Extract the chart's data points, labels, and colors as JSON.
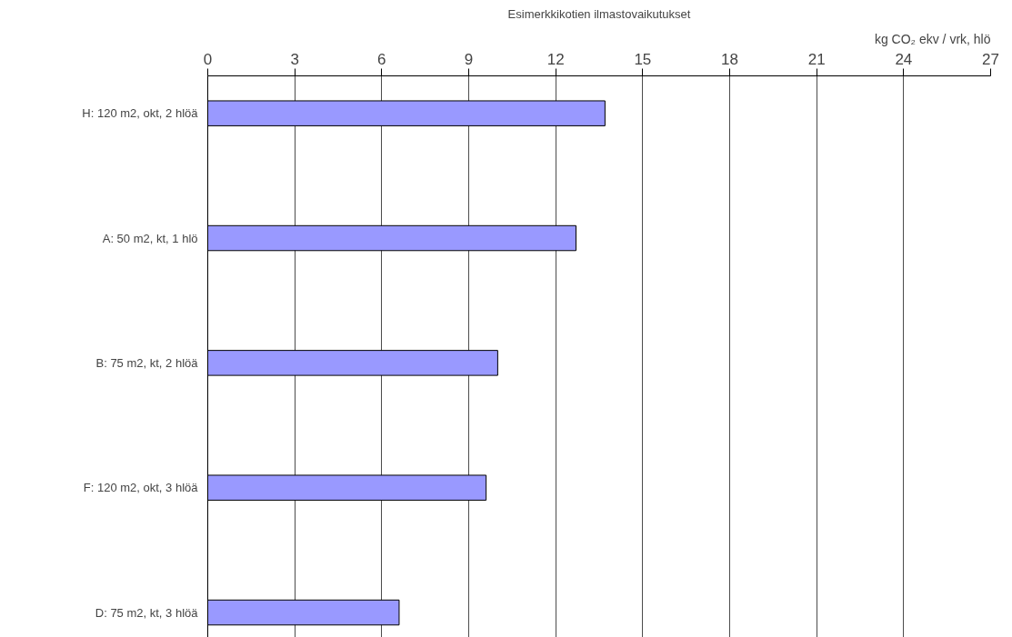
{
  "chart_data": {
    "type": "bar",
    "orientation": "horizontal",
    "title": "Esimerkkikotien ilmastovaikutukset",
    "xlabel": "kg CO₂ ekv / vrk, hlö",
    "categories": [
      "H: 120 m2, okt, 2 hlöä",
      "A: 50 m2, kt, 1 hlö",
      "B: 75 m2, kt, 2 hlöä",
      "F: 120 m2, okt, 3 hlöä",
      "D: 75 m2, kt, 3 hlöä"
    ],
    "values": [
      13.7,
      12.7,
      10.0,
      9.6,
      6.6
    ],
    "color": "#9999ff",
    "xlim": [
      0,
      27
    ],
    "xticks": [
      0,
      3,
      6,
      9,
      12,
      15,
      18,
      21,
      24,
      27
    ],
    "grid": "x"
  }
}
